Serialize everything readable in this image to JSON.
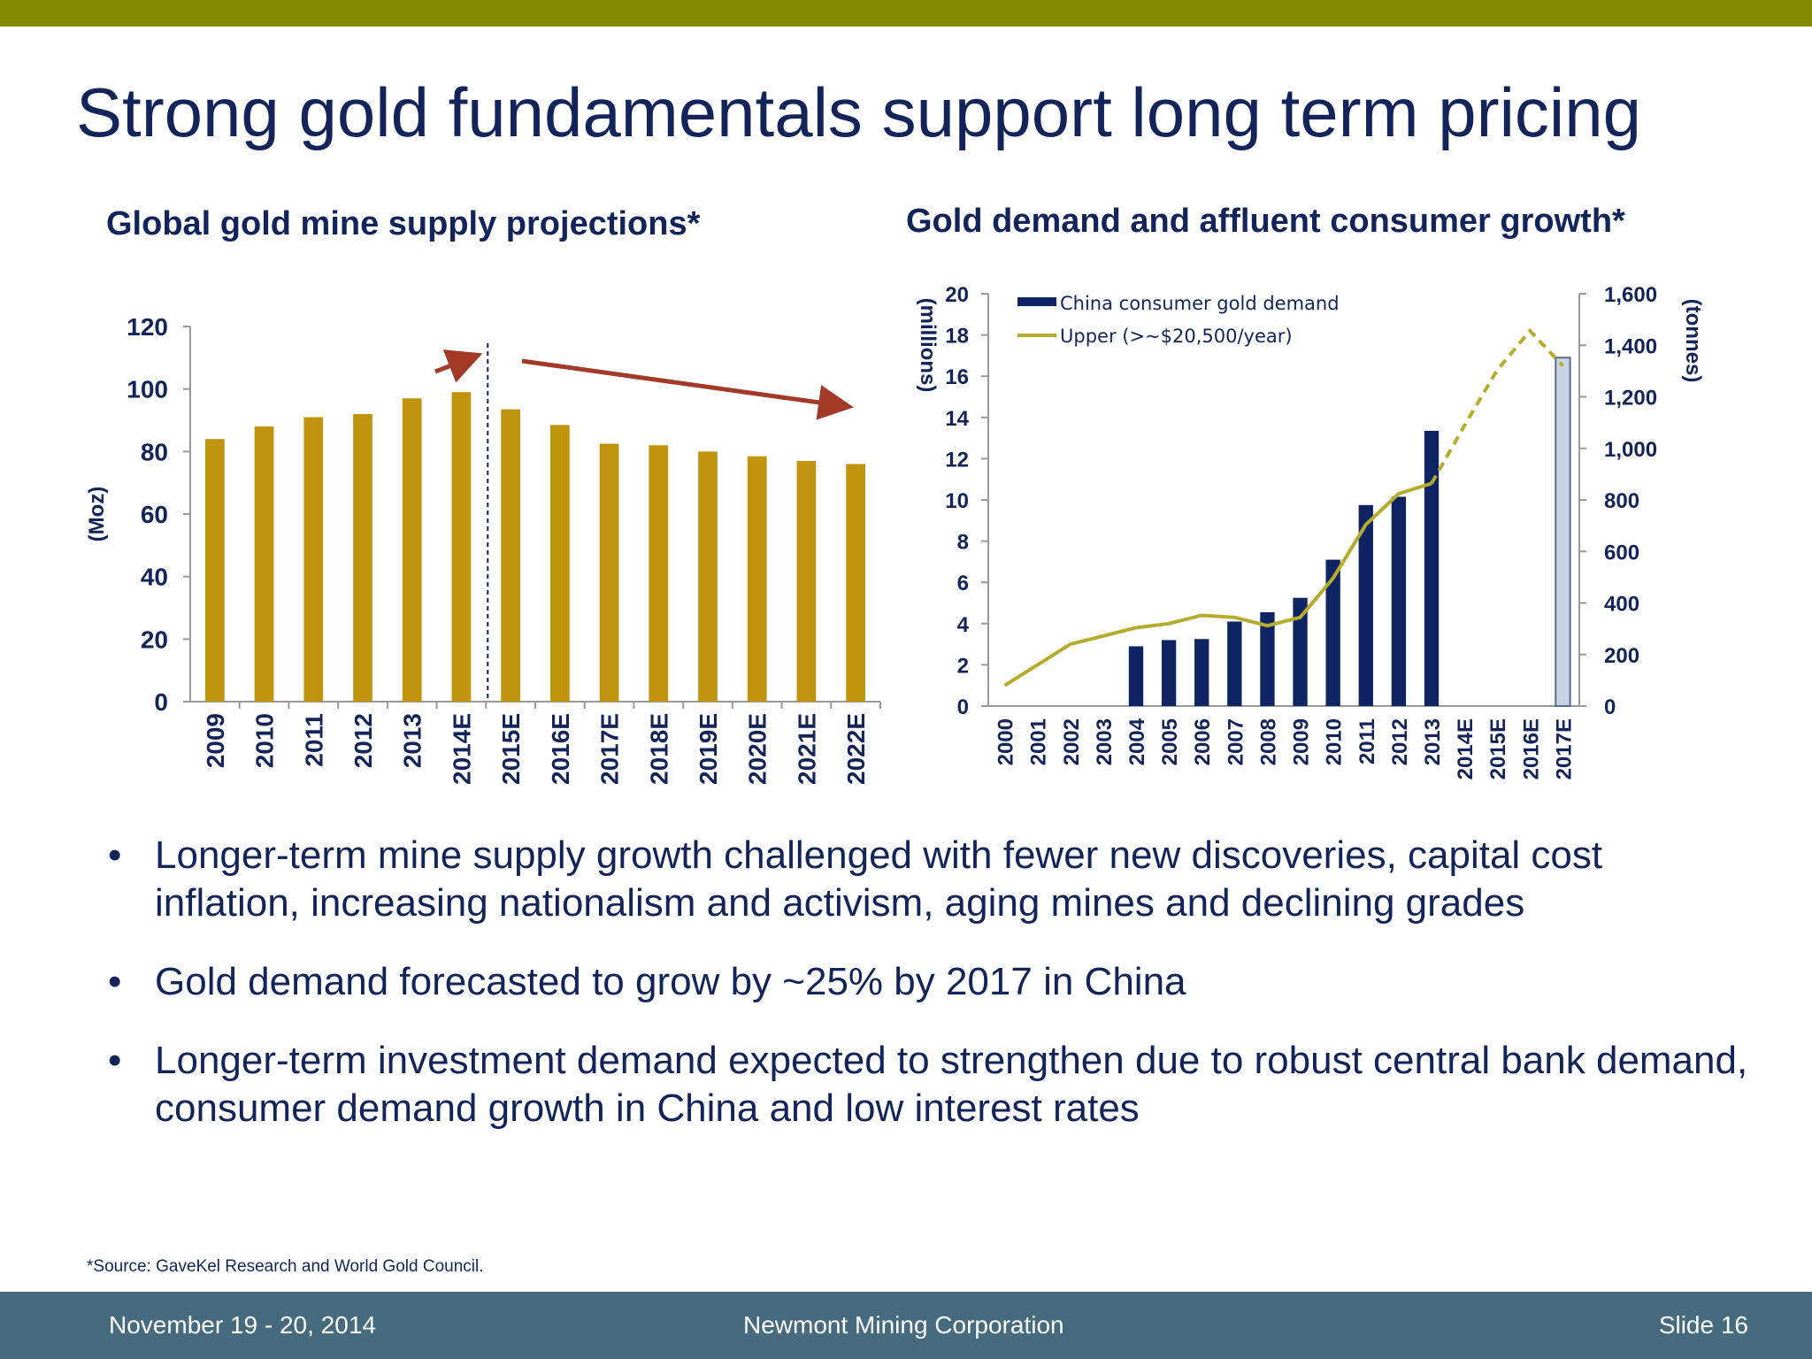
{
  "slide": {
    "title": "Strong gold fundamentals support long term pricing",
    "source": "*Source: GaveKel Research and World Gold Council.",
    "bullets": [
      "Longer-term mine supply growth challenged with fewer new discoveries, capital cost inflation, increasing nationalism and activism, aging mines and declining grades",
      "Gold demand forecasted to grow by ~25% by 2017 in China",
      "Longer-term investment demand expected to strengthen due to robust central bank demand, consumer demand growth in China and low interest rates"
    ],
    "bullet_char": "•",
    "footer": {
      "date": "November 19 - 20, 2014",
      "company": "Newmont Mining Corporation",
      "slide_number": "Slide 16"
    },
    "colors": {
      "top_bar": "#858b00",
      "footer": "#466b7e",
      "title": "#13245a",
      "gold_bar": "#c0940e",
      "navy_bar": "#0f2463",
      "line": "#b5ac2e",
      "arrow": "#a33a28"
    }
  },
  "chart_data": [
    {
      "type": "bar",
      "title": "Global gold mine supply projections*",
      "ylabel": "(Moz)",
      "ylim": [
        0,
        120
      ],
      "yticks": [
        0,
        20,
        40,
        60,
        80,
        100,
        120
      ],
      "categories": [
        "2009",
        "2010",
        "2011",
        "2012",
        "2013",
        "2014E",
        "2015E",
        "2016E",
        "2017E",
        "2018E",
        "2019E",
        "2020E",
        "2021E",
        "2022E"
      ],
      "values": [
        84,
        88,
        91,
        92,
        97,
        99,
        93.5,
        88.5,
        82.5,
        82,
        80,
        78.5,
        77,
        76
      ],
      "divider_after": "2014E"
    },
    {
      "type": "bar+line",
      "title": "Gold demand and affluent consumer growth*",
      "ylabel_left": "(millions)",
      "ylabel_right": "(tonnes)",
      "ylim_left": [
        0,
        20
      ],
      "ylim_right": [
        0,
        1600
      ],
      "yticks_left": [
        "0",
        "2",
        "4",
        "6",
        "8",
        "10",
        "12",
        "14",
        "16",
        "18",
        "20"
      ],
      "yticks_right": [
        "0",
        "200",
        "400",
        "600",
        "800",
        "1,000",
        "1,200",
        "1,400",
        "1,600"
      ],
      "categories": [
        "2000",
        "2001",
        "2002",
        "2003",
        "2004",
        "2005",
        "2006",
        "2007",
        "2008",
        "2009",
        "2010",
        "2011",
        "2012",
        "2013",
        "2014E",
        "2015E",
        "2016E",
        "2017E"
      ],
      "legend": [
        "China consumer gold demand",
        "Upper (>~$20,500/year)"
      ],
      "series": [
        {
          "name": "China consumer gold demand",
          "type": "bar",
          "axis": "right",
          "values": [
            null,
            null,
            null,
            null,
            232,
            256,
            260,
            328,
            364,
            420,
            568,
            780,
            812,
            1068,
            null,
            null,
            null,
            1352
          ],
          "forecast_index": 17
        },
        {
          "name": "Upper (>~$20,500/year)",
          "type": "line",
          "axis": "left",
          "values": [
            1.0,
            2.0,
            3.0,
            3.4,
            3.8,
            4.0,
            4.4,
            4.3,
            3.9,
            4.3,
            6.2,
            8.8,
            10.3,
            10.8,
            13.6,
            16.3,
            18.2,
            16.5
          ],
          "dashed_from_index": 13
        }
      ]
    }
  ]
}
